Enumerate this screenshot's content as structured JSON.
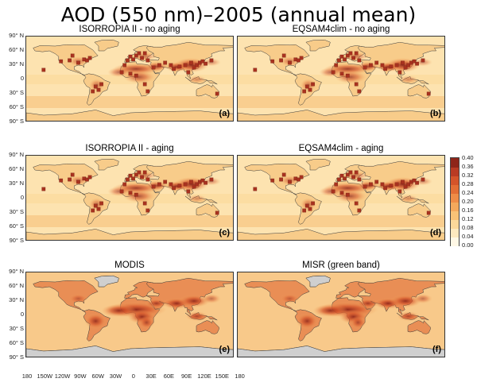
{
  "figure": {
    "title": "AOD (550 nm)–2005 (annual mean)"
  },
  "panels": [
    {
      "title": "ISORROPIA II - no aging",
      "label": "(a)",
      "kind": "model"
    },
    {
      "title": "EQSAM4clim - no aging",
      "label": "(b)",
      "kind": "model"
    },
    {
      "title": "ISORROPIA II - aging",
      "label": "(c)",
      "kind": "model"
    },
    {
      "title": "EQSAM4clim - aging",
      "label": "(d)",
      "kind": "model"
    },
    {
      "title": "MODIS",
      "label": "(e)",
      "kind": "satellite"
    },
    {
      "title": "MISR (green band)",
      "label": "(f)",
      "kind": "satellite"
    }
  ],
  "lat_ticks": [
    "90° N",
    "60° N",
    "30° N",
    "0",
    "30° S",
    "60° S",
    "90° S"
  ],
  "lon_ticks": [
    "180",
    "150W",
    "120W",
    "90W",
    "60W",
    "30W",
    "0",
    "30E",
    "60E",
    "90E",
    "120E",
    "150E",
    "180"
  ],
  "colorbar": {
    "labels": [
      "0.40",
      "0.36",
      "0.32",
      "0.28",
      "0.24",
      "0.20",
      "0.16",
      "0.12",
      "0.08",
      "0.04",
      "0.00"
    ],
    "colors": [
      "#fff8e6",
      "#fde9bf",
      "#fbd89a",
      "#f8c277",
      "#f4a85c",
      "#ef8c47",
      "#e36e35",
      "#d4542a",
      "#b93b23",
      "#8e2519"
    ]
  }
}
